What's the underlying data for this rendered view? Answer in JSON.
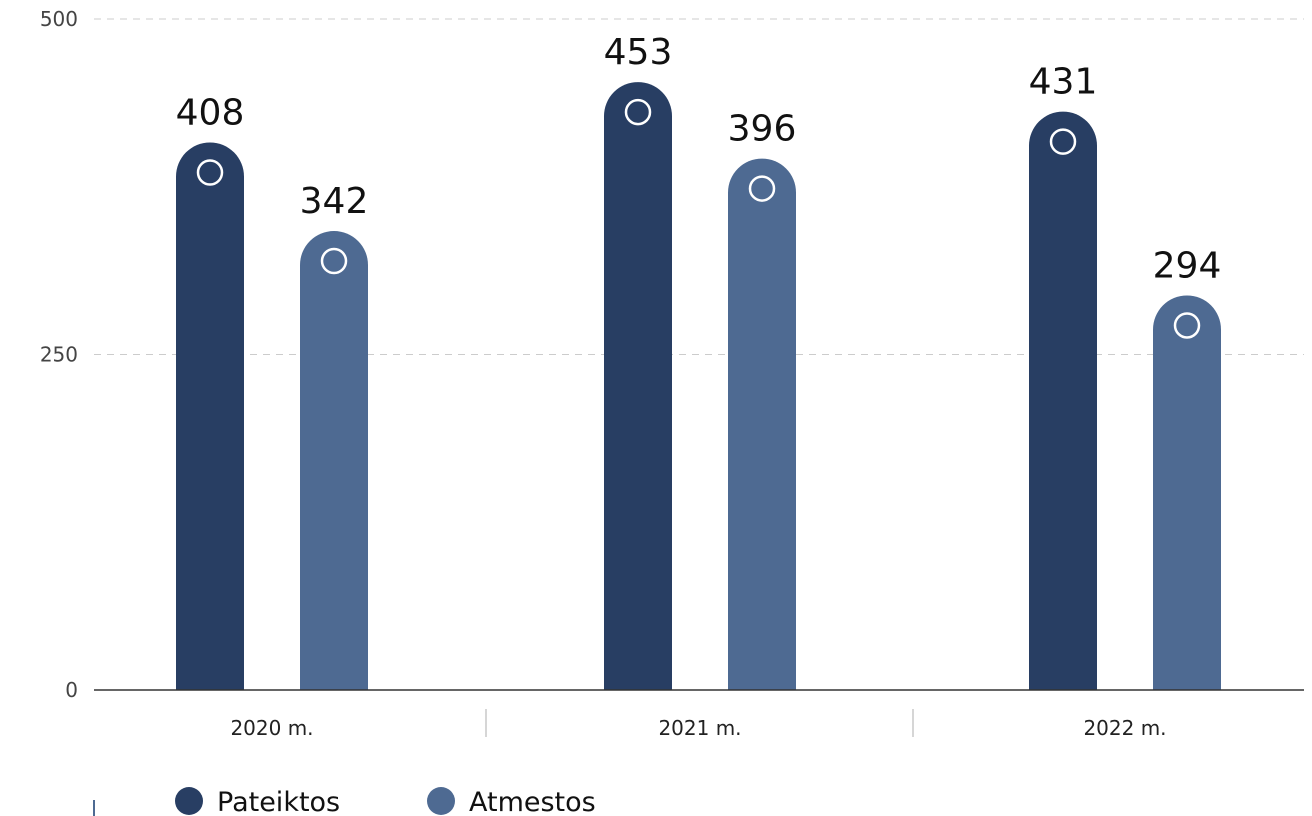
{
  "chart_data": {
    "type": "bar",
    "categories": [
      "2020 m.",
      "2021 m.",
      "2022 m."
    ],
    "series": [
      {
        "name": "Pateiktos",
        "values": [
          408,
          453,
          431
        ],
        "color": "#283e63"
      },
      {
        "name": "Atmestos",
        "values": [
          342,
          396,
          294
        ],
        "color": "#4e6a92"
      }
    ],
    "ylim": [
      0,
      500
    ],
    "yticks": [
      {
        "value": 0,
        "label": "0"
      },
      {
        "value": 250,
        "label": "250"
      },
      {
        "value": 500,
        "label": "500"
      }
    ],
    "grid": true,
    "legend_position": "bottom-left",
    "title": "",
    "xlabel": "",
    "ylabel": ""
  },
  "colors": {
    "axis": "#333333",
    "grid": "#cccccc",
    "separator": "#c8c8c8",
    "marker_ring": "#ffffff"
  }
}
